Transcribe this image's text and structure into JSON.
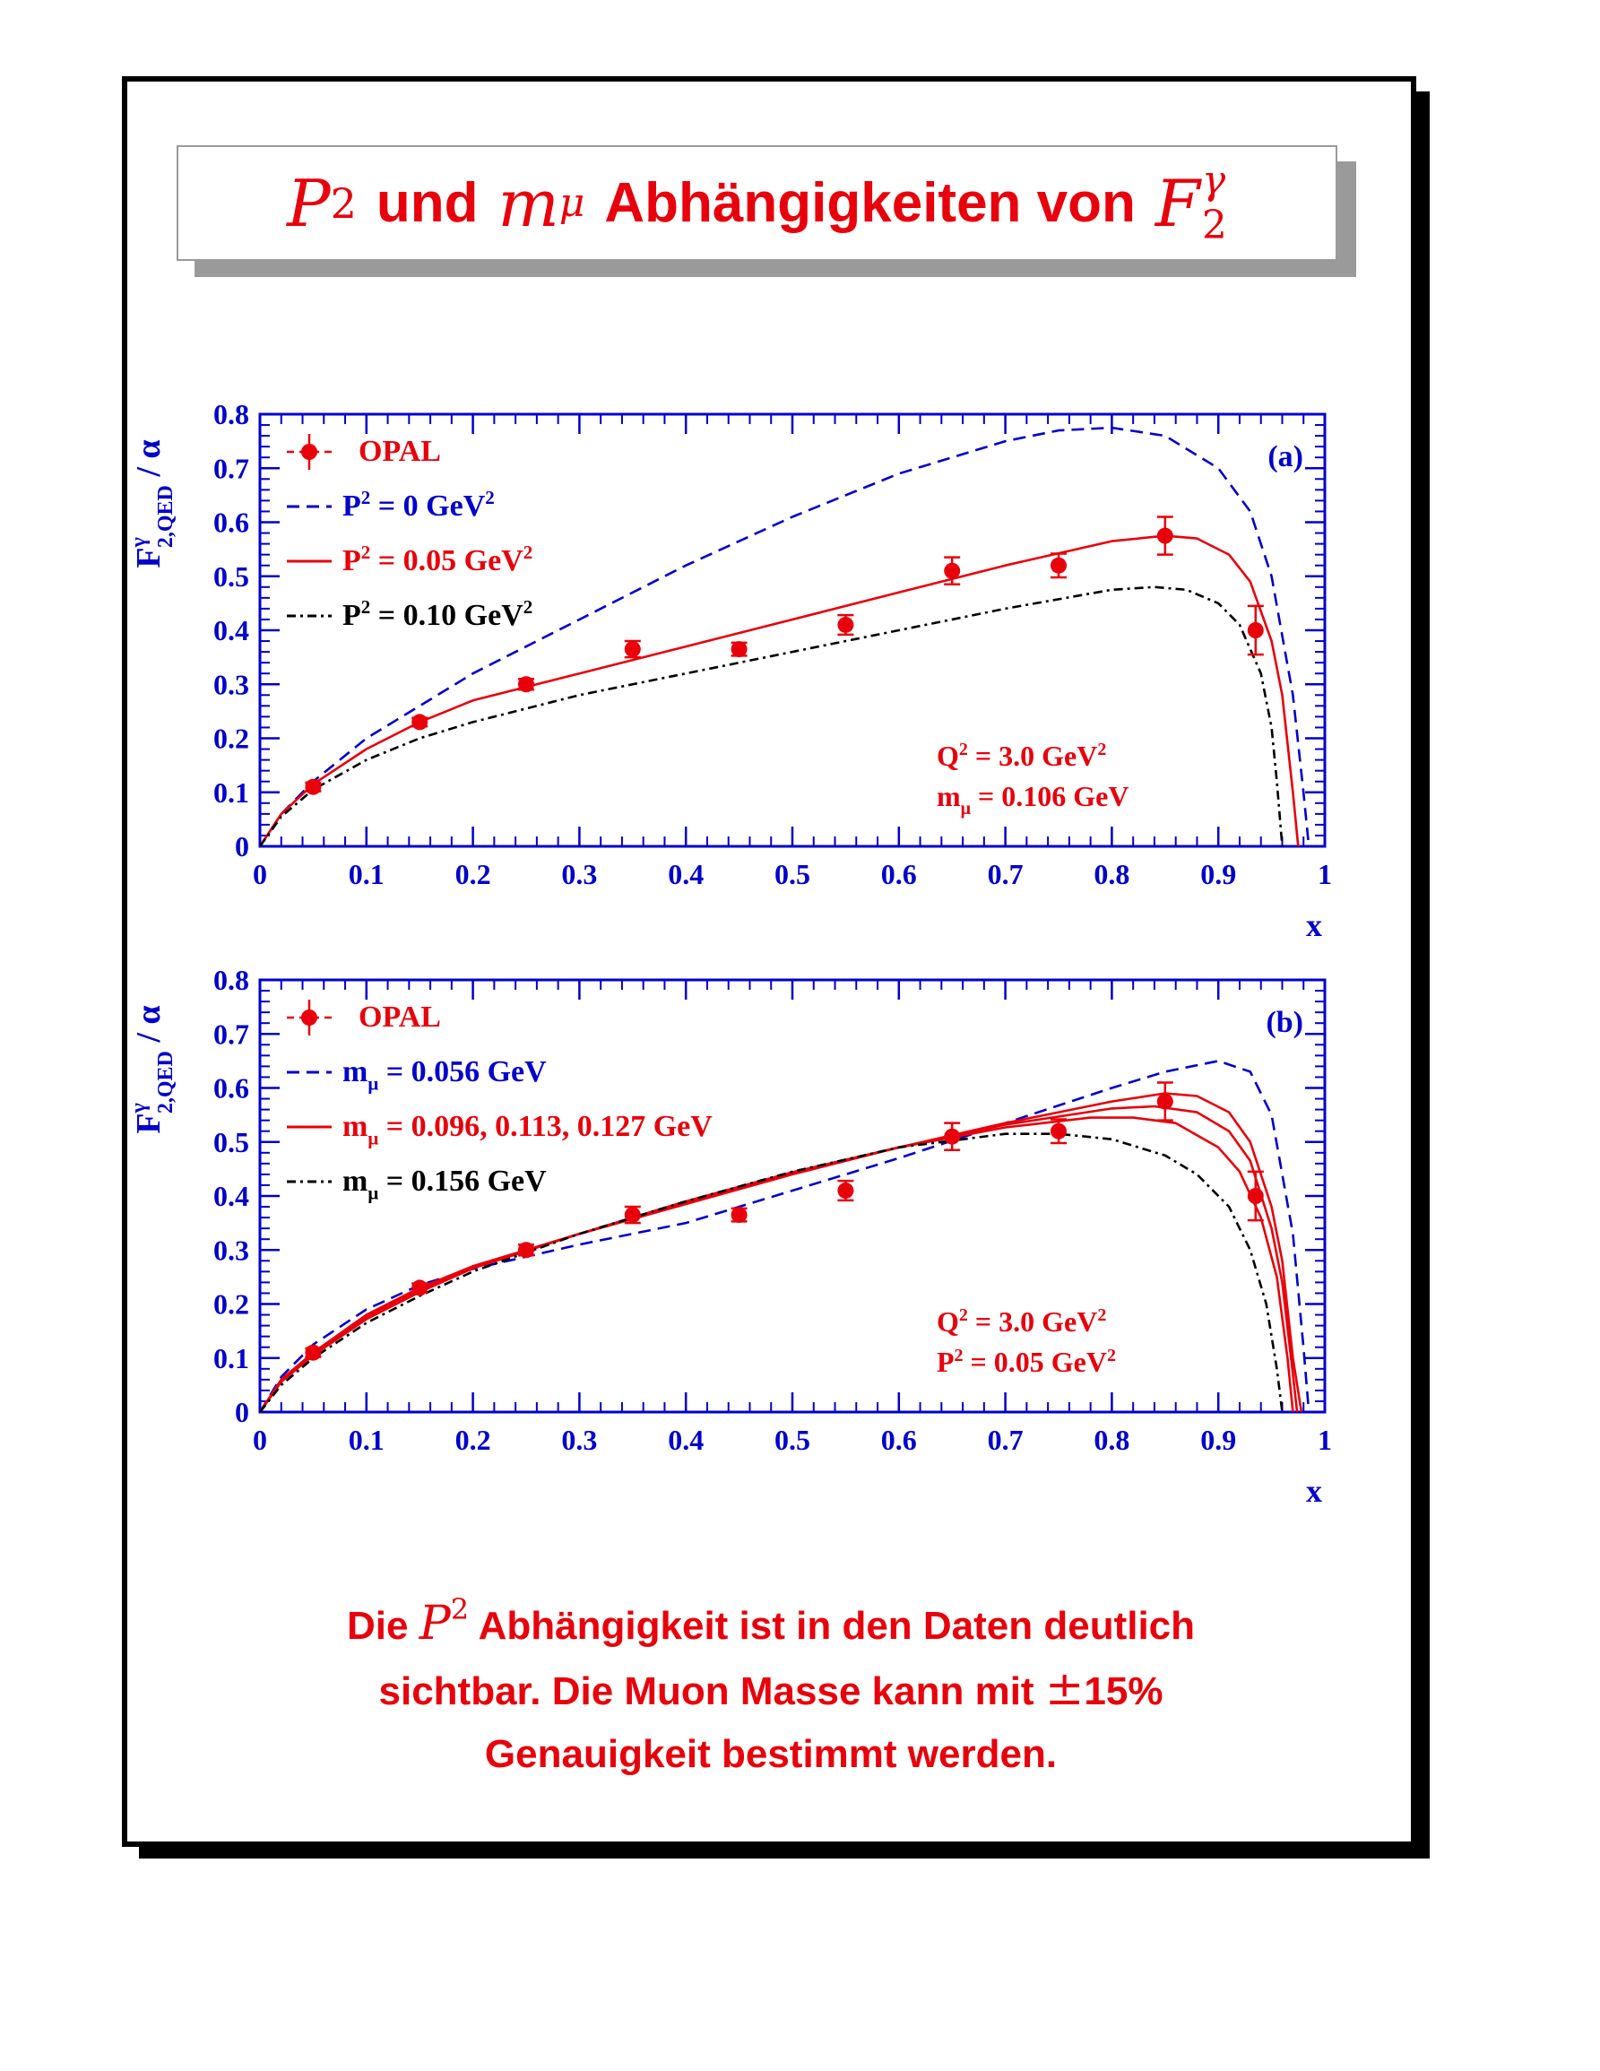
{
  "title": {
    "p_symbol": "P",
    "p_exp": "2",
    "word_und": "und",
    "m_symbol": "m",
    "m_sub": "μ",
    "word_rest": "Abhängigkeiten von",
    "f_symbol": "F",
    "f_sub": "2",
    "f_sup": "γ"
  },
  "conclusion": {
    "line1_pre": "Die",
    "line1_sym": "P",
    "line1_exp": "2",
    "line1_post": "Abhängigkeit ist in den Daten deutlich",
    "line2_pre": "sichtbar. Die Muon Masse kann mit",
    "line2_pm": "±",
    "line2_val": "15%",
    "line3": "Genauigkeit bestimmt werden."
  },
  "colors": {
    "red": "#e8000b",
    "blue": "#0000cc",
    "black": "#000000",
    "border_gray": "#9a9a9a"
  },
  "chart_data": [
    {
      "panel": "(a)",
      "type": "line",
      "xlabel": "x",
      "ylabel": "F^γ_{2,QED} / α",
      "xlim": [
        0,
        1
      ],
      "ylim": [
        0,
        0.8
      ],
      "xticks": [
        "0",
        "0.1",
        "0.2",
        "0.3",
        "0.4",
        "0.5",
        "0.6",
        "0.7",
        "0.8",
        "0.9",
        "1"
      ],
      "yticks": [
        "0",
        "0.1",
        "0.2",
        "0.3",
        "0.4",
        "0.5",
        "0.6",
        "0.7",
        "0.8"
      ],
      "annotation": [
        "Q² = 3.0 GeV²",
        "mμ = 0.106 GeV"
      ],
      "legend": [
        {
          "label": "OPAL",
          "style": "marker",
          "color": "#e8000b"
        },
        {
          "label": "P² =    0 GeV²",
          "style": "dashed",
          "color": "#0000cc"
        },
        {
          "label": "P² = 0.05 GeV²",
          "style": "solid",
          "color": "#e8000b"
        },
        {
          "label": "P² = 0.10 GeV²",
          "style": "dashdot",
          "color": "#000000"
        }
      ],
      "data_points": {
        "name": "OPAL",
        "x": [
          0.05,
          0.15,
          0.25,
          0.35,
          0.45,
          0.55,
          0.65,
          0.75,
          0.85,
          0.935
        ],
        "y": [
          0.11,
          0.23,
          0.3,
          0.365,
          0.365,
          0.41,
          0.51,
          0.52,
          0.575,
          0.4
        ],
        "err": [
          0.008,
          0.008,
          0.01,
          0.015,
          0.012,
          0.018,
          0.025,
          0.022,
          0.035,
          0.045
        ]
      },
      "series": [
        {
          "style": "dashed",
          "color": "#0000cc",
          "x": [
            0,
            0.02,
            0.05,
            0.1,
            0.15,
            0.2,
            0.3,
            0.4,
            0.5,
            0.6,
            0.7,
            0.75,
            0.8,
            0.85,
            0.9,
            0.93,
            0.95,
            0.97,
            0.98,
            0.985
          ],
          "y": [
            0,
            0.06,
            0.12,
            0.2,
            0.26,
            0.32,
            0.42,
            0.52,
            0.61,
            0.69,
            0.75,
            0.77,
            0.775,
            0.76,
            0.7,
            0.62,
            0.5,
            0.28,
            0.1,
            0
          ]
        },
        {
          "style": "solid",
          "color": "#e8000b",
          "x": [
            0,
            0.02,
            0.05,
            0.1,
            0.15,
            0.2,
            0.3,
            0.4,
            0.5,
            0.6,
            0.7,
            0.8,
            0.85,
            0.88,
            0.91,
            0.93,
            0.95,
            0.96,
            0.97,
            0.975
          ],
          "y": [
            0,
            0.06,
            0.115,
            0.18,
            0.23,
            0.27,
            0.32,
            0.37,
            0.42,
            0.47,
            0.52,
            0.565,
            0.575,
            0.57,
            0.54,
            0.49,
            0.38,
            0.28,
            0.1,
            0
          ]
        },
        {
          "style": "dashdot",
          "color": "#000000",
          "x": [
            0,
            0.02,
            0.05,
            0.1,
            0.15,
            0.2,
            0.3,
            0.4,
            0.5,
            0.6,
            0.7,
            0.8,
            0.84,
            0.87,
            0.9,
            0.92,
            0.94,
            0.95,
            0.955,
            0.96
          ],
          "y": [
            0,
            0.055,
            0.105,
            0.16,
            0.2,
            0.23,
            0.28,
            0.32,
            0.36,
            0.4,
            0.44,
            0.475,
            0.48,
            0.475,
            0.45,
            0.41,
            0.32,
            0.22,
            0.12,
            0
          ]
        }
      ]
    },
    {
      "panel": "(b)",
      "type": "line",
      "xlabel": "x",
      "ylabel": "F^γ_{2,QED} / α",
      "xlim": [
        0,
        1
      ],
      "ylim": [
        0,
        0.8
      ],
      "xticks": [
        "0",
        "0.1",
        "0.2",
        "0.3",
        "0.4",
        "0.5",
        "0.6",
        "0.7",
        "0.8",
        "0.9",
        "1"
      ],
      "yticks": [
        "0",
        "0.1",
        "0.2",
        "0.3",
        "0.4",
        "0.5",
        "0.6",
        "0.7",
        "0.8"
      ],
      "annotation": [
        "Q² = 3.0 GeV²",
        "P² = 0.05 GeV²"
      ],
      "legend": [
        {
          "label": "OPAL",
          "style": "marker",
          "color": "#e8000b"
        },
        {
          "label": "mμ = 0.056 GeV",
          "style": "dashed",
          "color": "#0000cc"
        },
        {
          "label": "mμ = 0.096, 0.113, 0.127 GeV",
          "style": "solid",
          "color": "#e8000b"
        },
        {
          "label": "mμ = 0.156 GeV",
          "style": "dashdot",
          "color": "#000000"
        }
      ],
      "data_points": {
        "name": "OPAL",
        "x": [
          0.05,
          0.15,
          0.25,
          0.35,
          0.45,
          0.55,
          0.65,
          0.75,
          0.85,
          0.935
        ],
        "y": [
          0.11,
          0.23,
          0.3,
          0.365,
          0.365,
          0.41,
          0.51,
          0.52,
          0.575,
          0.4
        ],
        "err": [
          0.008,
          0.008,
          0.01,
          0.015,
          0.012,
          0.018,
          0.025,
          0.022,
          0.035,
          0.045
        ]
      },
      "series": [
        {
          "style": "dashed",
          "color": "#0000cc",
          "x": [
            0,
            0.02,
            0.05,
            0.1,
            0.15,
            0.2,
            0.3,
            0.4,
            0.5,
            0.6,
            0.7,
            0.8,
            0.85,
            0.9,
            0.93,
            0.95,
            0.97,
            0.98,
            0.985
          ],
          "y": [
            0,
            0.065,
            0.125,
            0.19,
            0.235,
            0.265,
            0.31,
            0.35,
            0.41,
            0.47,
            0.535,
            0.6,
            0.63,
            0.65,
            0.63,
            0.55,
            0.33,
            0.12,
            0
          ]
        },
        {
          "style": "solid",
          "color": "#e8000b",
          "x": [
            0,
            0.02,
            0.05,
            0.1,
            0.15,
            0.2,
            0.3,
            0.4,
            0.5,
            0.6,
            0.7,
            0.8,
            0.85,
            0.88,
            0.91,
            0.93,
            0.95,
            0.96,
            0.97,
            0.978
          ],
          "y": [
            0,
            0.06,
            0.11,
            0.18,
            0.23,
            0.27,
            0.33,
            0.385,
            0.44,
            0.49,
            0.535,
            0.575,
            0.59,
            0.585,
            0.555,
            0.5,
            0.38,
            0.28,
            0.1,
            0
          ]
        },
        {
          "style": "solid",
          "color": "#e8000b",
          "x": [
            0,
            0.02,
            0.05,
            0.1,
            0.15,
            0.2,
            0.3,
            0.4,
            0.5,
            0.6,
            0.7,
            0.8,
            0.84,
            0.88,
            0.91,
            0.93,
            0.95,
            0.96,
            0.97,
            0.974
          ],
          "y": [
            0,
            0.058,
            0.108,
            0.176,
            0.226,
            0.268,
            0.33,
            0.387,
            0.442,
            0.49,
            0.532,
            0.562,
            0.566,
            0.555,
            0.52,
            0.465,
            0.34,
            0.24,
            0.07,
            0
          ]
        },
        {
          "style": "solid",
          "color": "#e8000b",
          "x": [
            0,
            0.02,
            0.05,
            0.1,
            0.15,
            0.2,
            0.3,
            0.4,
            0.5,
            0.6,
            0.7,
            0.78,
            0.82,
            0.86,
            0.9,
            0.92,
            0.94,
            0.955,
            0.965,
            0.97
          ],
          "y": [
            0,
            0.056,
            0.105,
            0.172,
            0.222,
            0.266,
            0.33,
            0.39,
            0.444,
            0.49,
            0.527,
            0.545,
            0.545,
            0.535,
            0.49,
            0.445,
            0.36,
            0.25,
            0.1,
            0
          ]
        },
        {
          "style": "dashdot",
          "color": "#000000",
          "x": [
            0,
            0.02,
            0.05,
            0.1,
            0.15,
            0.2,
            0.3,
            0.4,
            0.5,
            0.6,
            0.7,
            0.75,
            0.8,
            0.85,
            0.88,
            0.91,
            0.93,
            0.945,
            0.955,
            0.96
          ],
          "y": [
            0,
            0.05,
            0.1,
            0.165,
            0.215,
            0.26,
            0.33,
            0.39,
            0.445,
            0.49,
            0.515,
            0.515,
            0.505,
            0.475,
            0.44,
            0.38,
            0.3,
            0.2,
            0.08,
            0
          ]
        }
      ]
    }
  ]
}
